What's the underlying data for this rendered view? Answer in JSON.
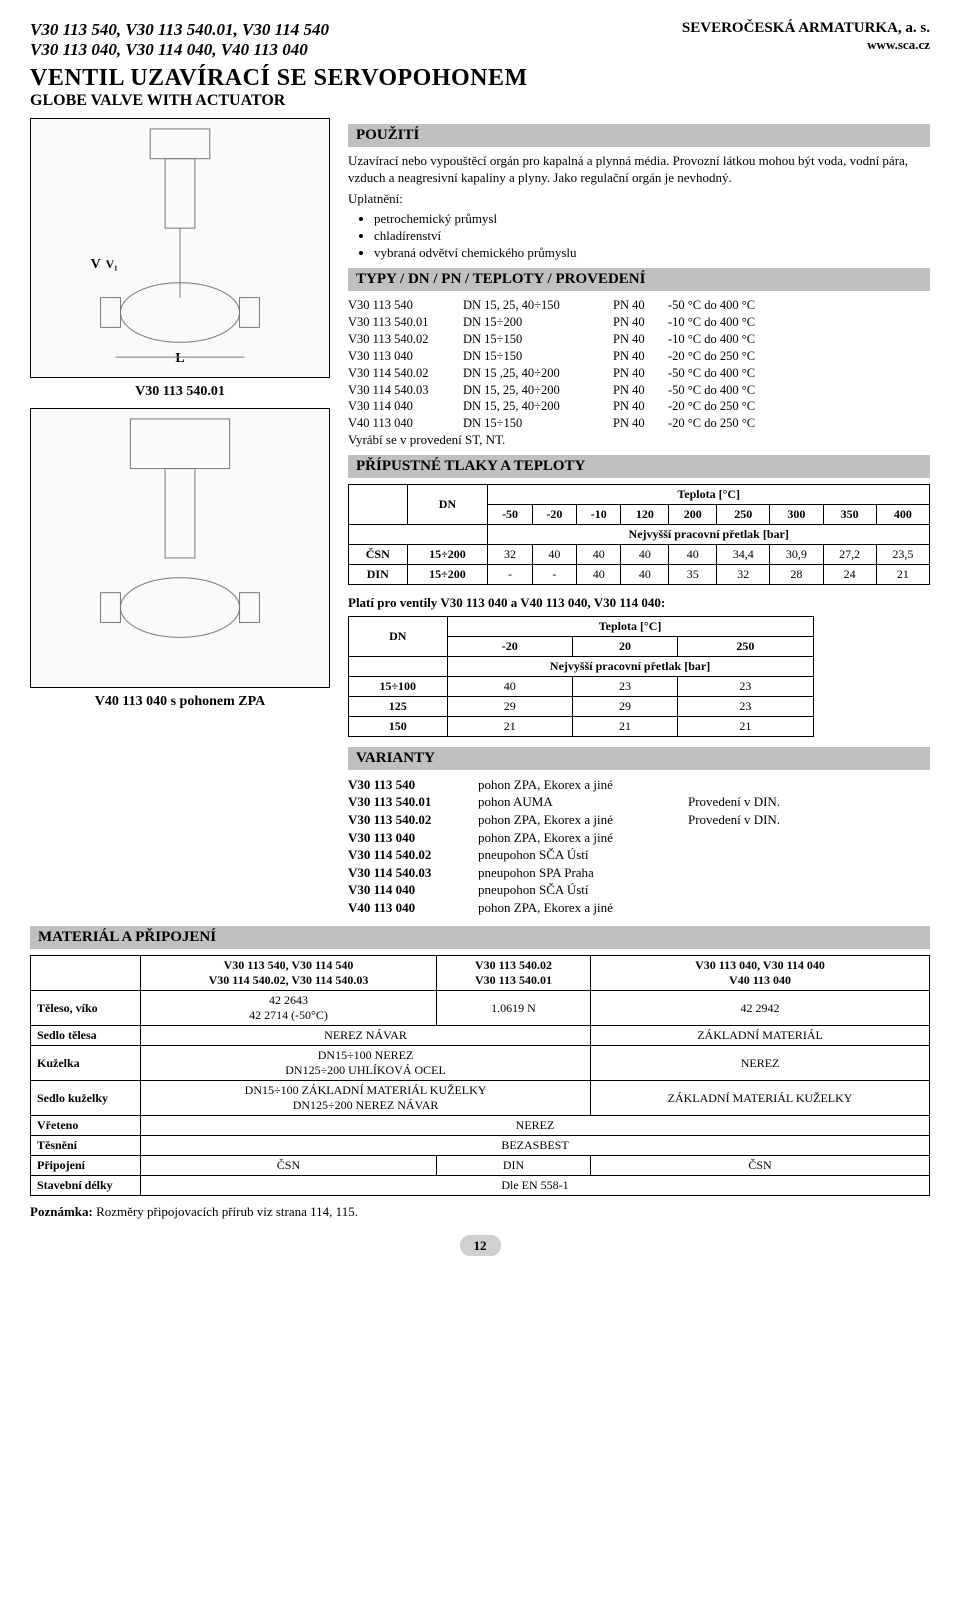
{
  "header": {
    "codes_line1": "V30 113 540, V30 113 540.01, V30 114 540",
    "codes_line2": "V30 113 040, V30 114 040, V40 113 040",
    "company": "SEVEROČESKÁ ARMATURKA, a. s.",
    "web": "www.sca.cz"
  },
  "title": {
    "main": "VENTIL UZAVÍRACÍ SE SERVOPOHONEM",
    "sub": "GLOBE VALVE WITH ACTUATOR"
  },
  "sections": {
    "pouziti": "POUŽITÍ",
    "typy": "TYPY / DN / PN / TEPLOTY / PROVEDENÍ",
    "tlaky": "PŘÍPUSTNÉ TLAKY A TEPLOTY",
    "varianty": "VARIANTY",
    "material": "MATERIÁL A PŘIPOJENÍ"
  },
  "pouziti_text": "Uzavírací nebo vypouštěcí orgán pro kapalná a plynná média. Provozní látkou mohou být voda, vodní pára, vzduch a neagresivní kapaliny a plyny. Jako regulační orgán je nevhodný.",
  "uplatneni_label": "Uplatnění:",
  "uplatneni": [
    "petrochemický průmysl",
    "chladírenství",
    "vybraná odvětví chemického průmyslu"
  ],
  "typy_rows": [
    {
      "c1": "V30 113 540",
      "c2": "DN 15, 25, 40÷150",
      "c3": "PN 40",
      "c4": "-50 °C do 400 °C"
    },
    {
      "c1": "V30 113 540.01",
      "c2": "DN 15÷200",
      "c3": "PN 40",
      "c4": "-10 °C do 400 °C"
    },
    {
      "c1": "V30 113 540.02",
      "c2": "DN 15÷150",
      "c3": "PN 40",
      "c4": "-10 °C do 400 °C"
    },
    {
      "c1": "V30 113 040",
      "c2": "DN 15÷150",
      "c3": "PN 40",
      "c4": "-20 °C do 250 °C"
    },
    {
      "c1": "V30 114 540.02",
      "c2": "DN 15 ,25, 40÷200",
      "c3": "PN 40",
      "c4": "-50 °C do 400 °C"
    },
    {
      "c1": "V30 114 540.03",
      "c2": "DN 15, 25, 40÷200",
      "c3": "PN 40",
      "c4": "-50 °C do 400 °C"
    },
    {
      "c1": "V30 114 040",
      "c2": "DN 15, 25, 40÷200",
      "c3": "PN 40",
      "c4": "-20 °C do 250 °C"
    },
    {
      "c1": "V40 113 040",
      "c2": "DN 15÷150",
      "c3": "PN 40",
      "c4": "-20 °C do 250 °C"
    }
  ],
  "typy_note": "Vyrábí se v provedení ST, NT.",
  "caption1": "V30 113 540.01",
  "caption2": "V40 113 040 s pohonem ZPA",
  "tbl1": {
    "head_temp": "Teplota [°C]",
    "head_dn": "DN",
    "cols": [
      "-50",
      "-20",
      "-10",
      "120",
      "200",
      "250",
      "300",
      "350",
      "400"
    ],
    "sub": "Nejvyšší pracovní přetlak [bar]",
    "rows": [
      {
        "l": "ČSN",
        "dn": "15÷200",
        "v": [
          "32",
          "40",
          "40",
          "40",
          "40",
          "34,4",
          "30,9",
          "27,2",
          "23,5"
        ]
      },
      {
        "l": "DIN",
        "dn": "15÷200",
        "v": [
          "-",
          "-",
          "40",
          "40",
          "35",
          "32",
          "28",
          "24",
          "21"
        ]
      }
    ]
  },
  "tbl1_note": "Platí pro ventily V30 113 040 a V40 113 040, V30 114 040:",
  "tbl2": {
    "head_temp": "Teplota [°C]",
    "head_dn": "DN",
    "cols": [
      "-20",
      "20",
      "250"
    ],
    "sub": "Nejvyšší pracovní přetlak [bar]",
    "rows": [
      {
        "dn": "15÷100",
        "v": [
          "40",
          "23",
          "23"
        ]
      },
      {
        "dn": "125",
        "v": [
          "29",
          "29",
          "23"
        ]
      },
      {
        "dn": "150",
        "v": [
          "21",
          "21",
          "21"
        ]
      }
    ]
  },
  "varianty": [
    {
      "v1": "V30 113 540",
      "v2": "pohon ZPA, Ekorex a jiné",
      "v3": ""
    },
    {
      "v1": "V30 113 540.01",
      "v2": "pohon AUMA",
      "v3": "Provedení v DIN."
    },
    {
      "v1": "V30 113 540.02",
      "v2": "pohon ZPA, Ekorex a jiné",
      "v3": "Provedení v DIN."
    },
    {
      "v1": "V30 113 040",
      "v2": "pohon ZPA, Ekorex a jiné",
      "v3": ""
    },
    {
      "v1": "V30 114 540.02",
      "v2": "pneupohon SČA Ústí",
      "v3": ""
    },
    {
      "v1": "V30 114 540.03",
      "v2": "pneupohon SPA Praha",
      "v3": ""
    },
    {
      "v1": "V30 114 040",
      "v2": "pneupohon SČA Ústí",
      "v3": ""
    },
    {
      "v1": "V40 113 040",
      "v2": "pohon ZPA, Ekorex a jiné",
      "v3": ""
    }
  ],
  "mat": {
    "head": [
      "",
      "V30 113 540, V30 114 540\nV30 114 540.02, V30 114 540.03",
      "V30 113 540.02\nV30 113 540.01",
      "V30 113 040, V30 114 040\nV40 113 040"
    ],
    "rows": [
      {
        "l": "Těleso, víko",
        "c": [
          "42 2643\n42 2714 (-50°C)",
          "1.0619 N",
          "42 2942"
        ],
        "spans": [
          1,
          1,
          1
        ]
      },
      {
        "l": "Sedlo tělesa",
        "c": [
          "NEREZ NÁVAR",
          "ZÁKLADNÍ MATERIÁL"
        ],
        "spans": [
          2,
          1
        ]
      },
      {
        "l": "Kuželka",
        "c": [
          "DN15÷100 NEREZ\nDN125÷200 UHLÍKOVÁ OCEL",
          "NEREZ"
        ],
        "spans": [
          2,
          1
        ]
      },
      {
        "l": "Sedlo kuželky",
        "c": [
          "DN15÷100 ZÁKLADNÍ MATERIÁL KUŽELKY\nDN125÷200 NEREZ NÁVAR",
          "ZÁKLADNÍ MATERIÁL KUŽELKY"
        ],
        "spans": [
          2,
          1
        ]
      },
      {
        "l": "Vřeteno",
        "c": [
          "NEREZ"
        ],
        "spans": [
          3
        ]
      },
      {
        "l": "Těsnění",
        "c": [
          "BEZASBEST"
        ],
        "spans": [
          3
        ]
      },
      {
        "l": "Připojení",
        "c": [
          "ČSN",
          "DIN",
          "ČSN"
        ],
        "spans": [
          1,
          1,
          1
        ]
      },
      {
        "l": "Stavební délky",
        "c": [
          "Dle EN 558-1"
        ],
        "spans": [
          3
        ]
      }
    ]
  },
  "footnote_label": "Poznámka:",
  "footnote": " Rozměry připojovacích přírub viz strana 114, 115.",
  "pagenum": "12"
}
